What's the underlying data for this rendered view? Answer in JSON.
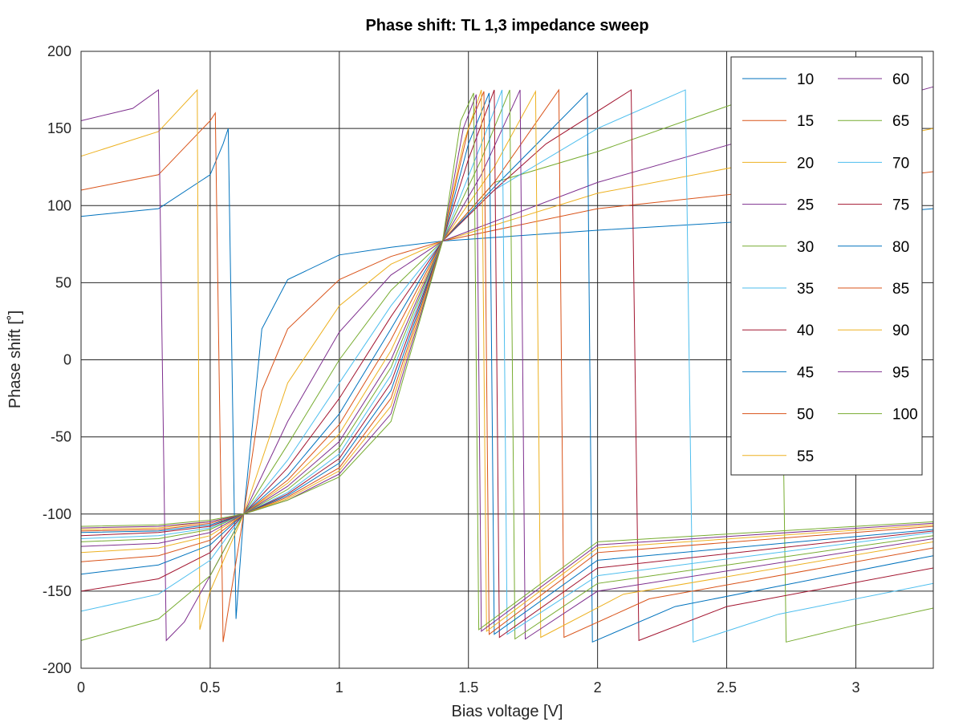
{
  "chart_data": {
    "type": "line",
    "title": "Phase shift: TL 1,3 impedance sweep",
    "xlabel": "Bias voltage [V]",
    "ylabel": "Phase shift [˚]",
    "xlim": [
      0,
      3.3
    ],
    "ylim": [
      -200,
      200
    ],
    "xticks": [
      0,
      0.5,
      1,
      1.5,
      2,
      2.5,
      3
    ],
    "xtick_labels": [
      "0",
      "0.5",
      "1",
      "1.5",
      "2",
      "2.5",
      "3"
    ],
    "yticks": [
      -200,
      -150,
      -100,
      -50,
      0,
      50,
      100,
      150,
      200
    ],
    "ytick_labels": [
      "-200",
      "-150",
      "-100",
      "-50",
      "0",
      "50",
      "100",
      "150",
      "200"
    ],
    "grid": true,
    "legend_placement": "top-right",
    "legend_columns": 2,
    "series_names": [
      "10",
      "15",
      "20",
      "25",
      "30",
      "35",
      "40",
      "45",
      "50",
      "55",
      "60",
      "65",
      "70",
      "75",
      "80",
      "85",
      "90",
      "95",
      "100"
    ],
    "colors": [
      "#0072bd",
      "#d95319",
      "#edb120",
      "#7e2f8e",
      "#77ac30",
      "#4dbeee",
      "#a2142f"
    ],
    "series": [
      {
        "name": "10",
        "x": [
          0,
          0.3,
          0.5,
          0.55,
          0.57,
          0.6,
          0.63,
          0.7,
          0.8,
          1.0,
          1.2,
          1.4,
          2.0,
          3.0,
          3.3
        ],
        "y": [
          93,
          98,
          120,
          140,
          150,
          -168,
          -100,
          20,
          52,
          68,
          73,
          77,
          84,
          94,
          98
        ]
      },
      {
        "name": "15",
        "x": [
          0,
          0.3,
          0.5,
          0.52,
          0.55,
          0.63,
          0.7,
          0.8,
          1.0,
          1.2,
          1.4,
          2.0,
          3.0,
          3.3
        ],
        "y": [
          110,
          120,
          155,
          160,
          -183,
          -100,
          -20,
          20,
          52,
          67,
          77,
          98,
          116,
          122
        ]
      },
      {
        "name": "20",
        "x": [
          0,
          0.3,
          0.45,
          0.46,
          0.5,
          0.63,
          0.8,
          1.0,
          1.2,
          1.4,
          2.0,
          3.0,
          3.3
        ],
        "y": [
          132,
          148,
          175,
          -175,
          -150,
          -100,
          -15,
          35,
          62,
          77,
          108,
          140,
          150
        ]
      },
      {
        "name": "25",
        "x": [
          0,
          0.2,
          0.3,
          0.33,
          0.4,
          0.5,
          0.63,
          0.8,
          1.0,
          1.2,
          1.4,
          2.0,
          3.0,
          3.3
        ],
        "y": [
          155,
          163,
          175,
          -182,
          -170,
          -140,
          -100,
          -40,
          18,
          55,
          77,
          115,
          163,
          177
        ]
      },
      {
        "name": "30",
        "x": [
          0,
          0.3,
          0.5,
          0.63,
          0.8,
          1.0,
          1.2,
          1.4,
          1.6,
          2.0,
          2.7,
          2.73,
          3.0,
          3.3
        ],
        "y": [
          -182,
          -168,
          -140,
          -100,
          -55,
          0,
          45,
          77,
          115,
          135,
          176,
          -183,
          -172,
          -161
        ]
      },
      {
        "name": "35",
        "x": [
          0,
          0.3,
          0.5,
          0.63,
          0.8,
          1.0,
          1.2,
          1.4,
          1.6,
          2.0,
          2.34,
          2.37,
          2.7,
          3.3
        ],
        "y": [
          -163,
          -152,
          -130,
          -100,
          -65,
          -15,
          35,
          77,
          110,
          150,
          175,
          -183,
          -165,
          -145
        ]
      },
      {
        "name": "40",
        "x": [
          0,
          0.3,
          0.5,
          0.63,
          0.8,
          1.0,
          1.2,
          1.4,
          1.6,
          1.8,
          2.13,
          2.16,
          2.5,
          3.3
        ],
        "y": [
          -150,
          -142,
          -125,
          -100,
          -70,
          -25,
          28,
          77,
          110,
          140,
          175,
          -182,
          -160,
          -135
        ]
      },
      {
        "name": "45",
        "x": [
          0,
          0.3,
          0.5,
          0.63,
          0.8,
          1.0,
          1.2,
          1.4,
          1.6,
          1.96,
          1.98,
          2.3,
          3.3
        ],
        "y": [
          -139,
          -133,
          -120,
          -100,
          -75,
          -35,
          20,
          77,
          112,
          173,
          -183,
          -160,
          -127
        ]
      },
      {
        "name": "50",
        "x": [
          0,
          0.3,
          0.5,
          0.63,
          0.8,
          1.0,
          1.2,
          1.4,
          1.6,
          1.85,
          1.87,
          2.2,
          3.3
        ],
        "y": [
          -131,
          -127,
          -117,
          -100,
          -78,
          -42,
          13,
          77,
          115,
          175,
          -180,
          -155,
          -122
        ]
      },
      {
        "name": "55",
        "x": [
          0,
          0.3,
          0.5,
          0.63,
          0.8,
          1.0,
          1.2,
          1.4,
          1.6,
          1.76,
          1.78,
          2.1,
          3.3
        ],
        "y": [
          -125,
          -122,
          -114,
          -100,
          -80,
          -48,
          6,
          77,
          125,
          174,
          -180,
          -152,
          -118
        ]
      },
      {
        "name": "60",
        "x": [
          0,
          0.3,
          0.5,
          0.63,
          0.8,
          1.0,
          1.2,
          1.4,
          1.55,
          1.7,
          1.72,
          2.0,
          3.3
        ],
        "y": [
          -121,
          -119,
          -112,
          -100,
          -82,
          -53,
          0,
          77,
          120,
          175,
          -181,
          -150,
          -116
        ]
      },
      {
        "name": "65",
        "x": [
          0,
          0.3,
          0.5,
          0.63,
          0.8,
          1.0,
          1.2,
          1.4,
          1.55,
          1.66,
          1.68,
          2.0,
          3.3
        ],
        "y": [
          -118,
          -116,
          -110,
          -100,
          -84,
          -57,
          -5,
          77,
          130,
          175,
          -181,
          -145,
          -114
        ]
      },
      {
        "name": "70",
        "x": [
          0,
          0.3,
          0.5,
          0.63,
          0.8,
          1.0,
          1.2,
          1.4,
          1.55,
          1.63,
          1.65,
          2.0,
          3.3
        ],
        "y": [
          -116,
          -114,
          -109,
          -100,
          -86,
          -61,
          -10,
          77,
          140,
          175,
          -178,
          -140,
          -112
        ]
      },
      {
        "name": "75",
        "x": [
          0,
          0.3,
          0.5,
          0.63,
          0.8,
          1.0,
          1.2,
          1.4,
          1.5,
          1.6,
          1.62,
          2.0,
          3.3
        ],
        "y": [
          -114,
          -112,
          -108,
          -100,
          -87,
          -64,
          -15,
          77,
          130,
          175,
          -180,
          -135,
          -111
        ]
      },
      {
        "name": "80",
        "x": [
          0,
          0.3,
          0.5,
          0.63,
          0.8,
          1.0,
          1.2,
          1.4,
          1.5,
          1.58,
          1.6,
          2.0,
          3.3
        ],
        "y": [
          -112,
          -111,
          -107,
          -100,
          -88,
          -67,
          -20,
          77,
          140,
          173,
          -178,
          -130,
          -110
        ]
      },
      {
        "name": "85",
        "x": [
          0,
          0.3,
          0.5,
          0.63,
          0.8,
          1.0,
          1.2,
          1.4,
          1.5,
          1.56,
          1.58,
          2.0,
          3.3
        ],
        "y": [
          -111,
          -110,
          -106,
          -100,
          -89,
          -70,
          -25,
          77,
          150,
          174,
          -178,
          -125,
          -108
        ]
      },
      {
        "name": "90",
        "x": [
          0,
          0.3,
          0.5,
          0.63,
          0.8,
          1.0,
          1.2,
          1.4,
          1.48,
          1.55,
          1.57,
          2.0,
          3.3
        ],
        "y": [
          -110,
          -109,
          -105,
          -100,
          -90,
          -72,
          -30,
          77,
          140,
          175,
          -176,
          -122,
          -107
        ]
      },
      {
        "name": "95",
        "x": [
          0,
          0.3,
          0.5,
          0.63,
          0.8,
          1.0,
          1.2,
          1.4,
          1.48,
          1.53,
          1.55,
          2.0,
          3.3
        ],
        "y": [
          -109,
          -108,
          -105,
          -100,
          -91,
          -74,
          -35,
          77,
          150,
          172,
          -176,
          -120,
          -106
        ]
      },
      {
        "name": "100",
        "x": [
          0,
          0.3,
          0.5,
          0.63,
          0.8,
          1.0,
          1.2,
          1.4,
          1.47,
          1.52,
          1.54,
          2.0,
          3.3
        ],
        "y": [
          -108,
          -107,
          -104,
          -100,
          -91,
          -76,
          -40,
          77,
          155,
          173,
          -175,
          -118,
          -105
        ]
      }
    ]
  }
}
